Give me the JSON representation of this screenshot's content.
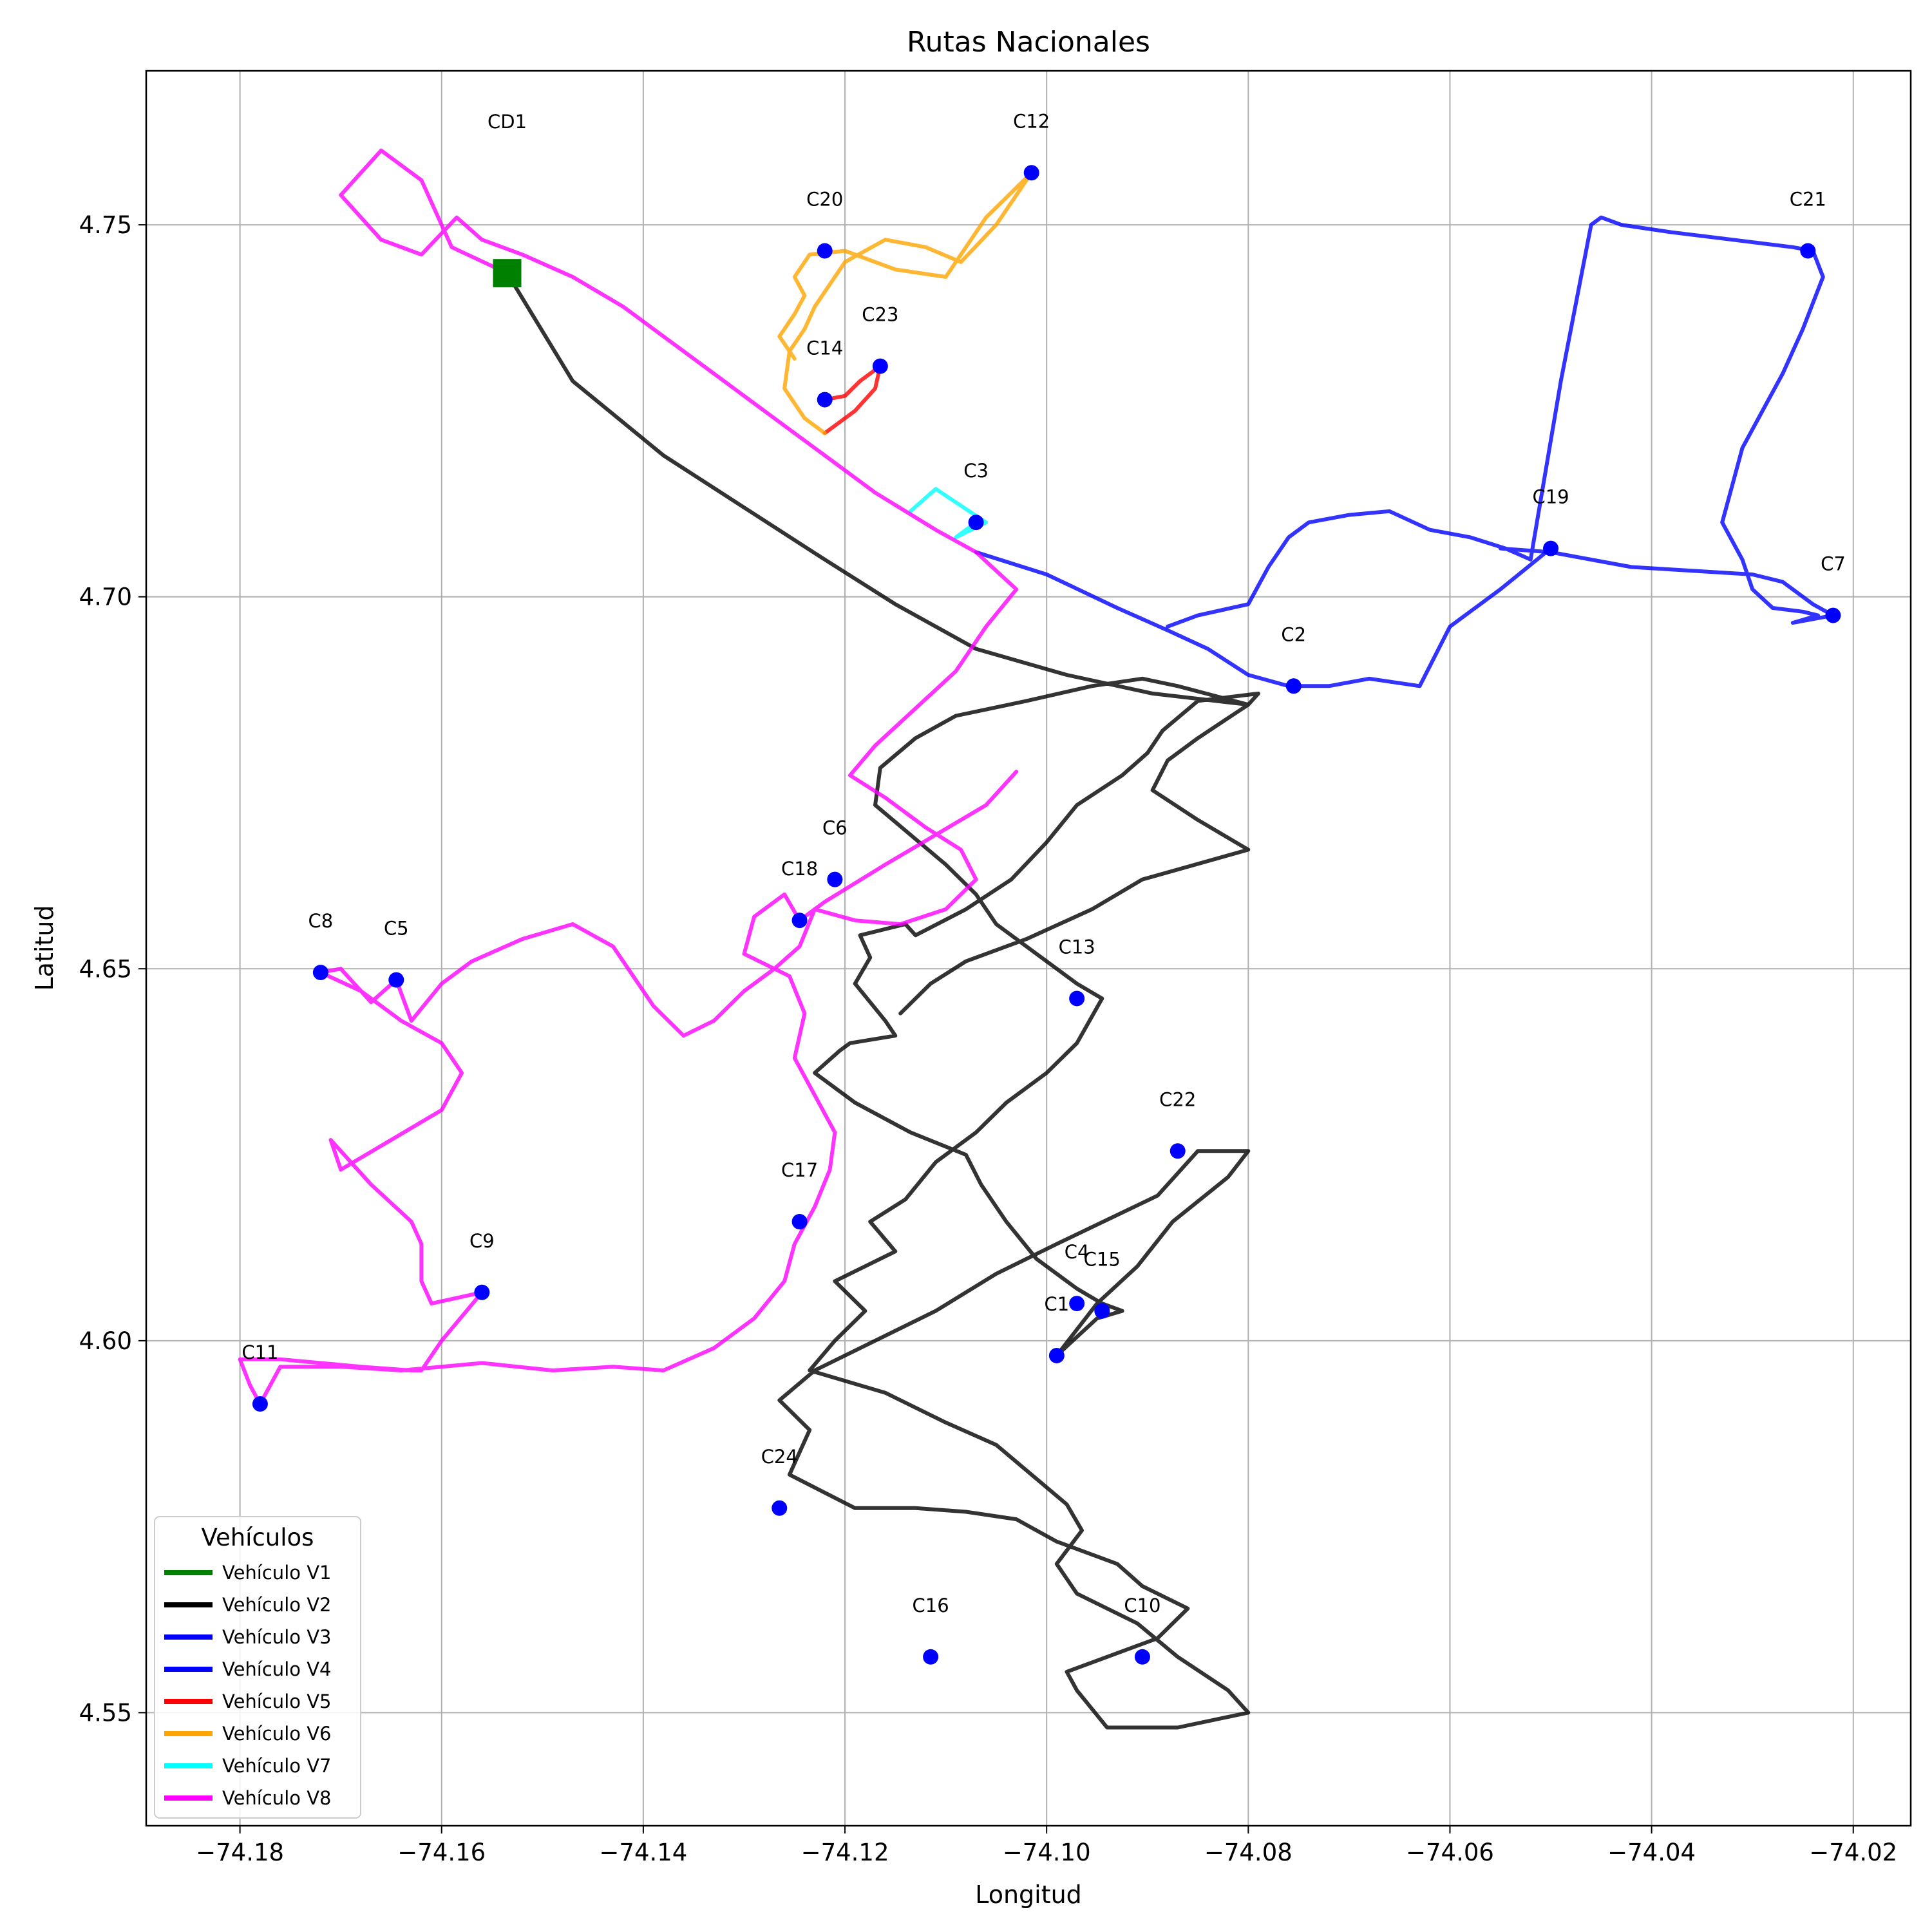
{
  "chart_data": {
    "type": "line",
    "title": "Rutas Nacionales",
    "xlabel": "Longitud",
    "ylabel": "Latitud",
    "xlim": [
      -74.1893,
      -74.0143
    ],
    "ylim": [
      4.5348,
      4.7707
    ],
    "xticks": [
      -74.18,
      -74.16,
      -74.14,
      -74.12,
      -74.1,
      -74.08,
      -74.06,
      -74.04,
      -74.02
    ],
    "xtick_labels": [
      "−74.18",
      "−74.16",
      "−74.14",
      "−74.12",
      "−74.10",
      "−74.08",
      "−74.06",
      "−74.04",
      "−74.02"
    ],
    "yticks": [
      4.55,
      4.6,
      4.65,
      4.7,
      4.75
    ],
    "ytick_labels": [
      "4.55",
      "4.60",
      "4.65",
      "4.70",
      "4.75"
    ],
    "grid": true,
    "depot": {
      "label": "CD1",
      "x": -74.1535,
      "y": 4.7435,
      "color": "#008000"
    },
    "customers": [
      {
        "label": "C1",
        "x": -74.099,
        "y": 4.598
      },
      {
        "label": "C2",
        "x": -74.0755,
        "y": 4.688
      },
      {
        "label": "C3",
        "x": -74.107,
        "y": 4.71
      },
      {
        "label": "C4",
        "x": -74.097,
        "y": 4.605
      },
      {
        "label": "C5",
        "x": -74.1645,
        "y": 4.6485
      },
      {
        "label": "C6",
        "x": -74.121,
        "y": 4.662
      },
      {
        "label": "C7",
        "x": -74.022,
        "y": 4.6975
      },
      {
        "label": "C8",
        "x": -74.172,
        "y": 4.6495
      },
      {
        "label": "C9",
        "x": -74.156,
        "y": 4.6065
      },
      {
        "label": "C10",
        "x": -74.0905,
        "y": 4.5575
      },
      {
        "label": "C11",
        "x": -74.178,
        "y": 4.5915
      },
      {
        "label": "C12",
        "x": -74.1015,
        "y": 4.757
      },
      {
        "label": "C13",
        "x": -74.097,
        "y": 4.646
      },
      {
        "label": "C14",
        "x": -74.122,
        "y": 4.7265
      },
      {
        "label": "C15",
        "x": -74.0945,
        "y": 4.604
      },
      {
        "label": "C16",
        "x": -74.1115,
        "y": 4.5575
      },
      {
        "label": "C17",
        "x": -74.1245,
        "y": 4.616
      },
      {
        "label": "C18",
        "x": -74.1245,
        "y": 4.6565
      },
      {
        "label": "C19",
        "x": -74.05,
        "y": 4.7065
      },
      {
        "label": "C20",
        "x": -74.122,
        "y": 4.7465
      },
      {
        "label": "C21",
        "x": -74.0245,
        "y": 4.7465
      },
      {
        "label": "C22",
        "x": -74.087,
        "y": 4.6255
      },
      {
        "label": "C23",
        "x": -74.1165,
        "y": 4.731
      },
      {
        "label": "C24",
        "x": -74.1265,
        "y": 4.5775
      }
    ],
    "series": [
      {
        "name": "Vehículo V1",
        "color": "#008000",
        "x": [],
        "y": []
      },
      {
        "name": "Vehículo V2",
        "color": "#000000",
        "x": [
          -74.1535,
          -74.147,
          -74.138,
          -74.13,
          -74.122,
          -74.115,
          -74.107,
          -74.098,
          -74.0895,
          -74.08,
          -74.079,
          -74.085,
          -74.0885,
          -74.09,
          -74.0925,
          -74.097,
          -74.1,
          -74.1035,
          -74.108,
          -74.113,
          -74.114,
          -74.1185,
          -74.1175,
          -74.119,
          -74.116,
          -74.115,
          -74.1195,
          -74.1205,
          -74.123,
          -74.119,
          -74.1135,
          -74.108,
          -74.1065,
          -74.104,
          -74.101,
          -74.097,
          -74.0945,
          -74.0925,
          -74.095,
          -74.099,
          -74.095,
          -74.091,
          -74.0875,
          -74.082,
          -74.08,
          -74.085,
          -74.089,
          -74.099,
          -74.105,
          -74.111,
          -74.117,
          -74.123,
          -74.1265,
          -74.1235,
          -74.1255,
          -74.119,
          -74.113,
          -74.108,
          -74.103,
          -74.099,
          -74.093,
          -74.0905,
          -74.086,
          -74.089,
          -74.094,
          -74.098,
          -74.097,
          -74.094,
          -74.087,
          -74.08,
          -74.082,
          -74.087,
          -74.091,
          -74.097,
          -74.099,
          -74.0965,
          -74.098,
          -74.1015,
          -74.105,
          -74.11,
          -74.116,
          -74.1235,
          -74.121,
          -74.118,
          -74.121,
          -74.115,
          -74.1175,
          -74.114,
          -74.111,
          -74.107,
          -74.104,
          -74.1,
          -74.097,
          -74.0945,
          -74.097,
          -74.101,
          -74.105,
          -74.107,
          -74.11,
          -74.1135,
          -74.117,
          -74.1165,
          -74.113,
          -74.109,
          -74.102,
          -74.0955,
          -74.0905,
          -74.087,
          -74.08,
          -74.085,
          -74.088,
          -74.0895,
          -74.085,
          -74.08,
          -74.0905,
          -74.0955,
          -74.102,
          -74.108,
          -74.1115,
          -74.1145
        ],
        "y": [
          4.7435,
          4.729,
          4.719,
          4.712,
          4.705,
          4.699,
          4.693,
          4.6895,
          4.687,
          4.6855,
          4.687,
          4.686,
          4.682,
          4.679,
          4.676,
          4.672,
          4.667,
          4.662,
          4.658,
          4.6545,
          4.656,
          4.6545,
          4.6515,
          4.648,
          4.643,
          4.641,
          4.64,
          4.639,
          4.636,
          4.632,
          4.628,
          4.625,
          4.621,
          4.616,
          4.611,
          4.607,
          4.605,
          4.604,
          4.603,
          4.598,
          4.605,
          4.61,
          4.616,
          4.622,
          4.6255,
          4.6255,
          4.6195,
          4.613,
          4.609,
          4.604,
          4.6,
          4.596,
          4.592,
          4.588,
          4.582,
          4.5775,
          4.5775,
          4.577,
          4.576,
          4.573,
          4.57,
          4.567,
          4.564,
          4.56,
          4.5575,
          4.5555,
          4.553,
          4.548,
          4.548,
          4.55,
          4.553,
          4.5575,
          4.562,
          4.566,
          4.57,
          4.5745,
          4.578,
          4.582,
          4.586,
          4.589,
          4.593,
          4.596,
          4.6,
          4.604,
          4.608,
          4.612,
          4.616,
          4.619,
          4.624,
          4.628,
          4.632,
          4.636,
          4.64,
          4.646,
          4.648,
          4.652,
          4.656,
          4.66,
          4.664,
          4.668,
          4.672,
          4.677,
          4.681,
          4.684,
          4.686,
          4.688,
          4.689,
          4.688,
          4.6855,
          4.681,
          4.678,
          4.674,
          4.67,
          4.666,
          4.662,
          4.658,
          4.654,
          4.651,
          4.648,
          4.644
        ]
      },
      {
        "name": "Vehículo V3",
        "color": "#0000ff",
        "x": [
          -74.107,
          -74.1,
          -74.093,
          -74.088,
          -74.084,
          -74.08,
          -74.076,
          -74.072,
          -74.068,
          -74.063,
          -74.06,
          -74.055,
          -74.05
        ],
        "y": [
          4.706,
          4.703,
          4.6985,
          4.6955,
          4.693,
          4.6895,
          4.688,
          4.688,
          4.689,
          4.688,
          4.696,
          4.701,
          4.7065
        ]
      },
      {
        "name": "Vehículo V4",
        "color": "#0000ff",
        "x": [
          -74.088,
          -74.085,
          -74.08,
          -74.078,
          -74.076,
          -74.074,
          -74.07,
          -74.066,
          -74.062,
          -74.058,
          -74.0545,
          -74.052,
          -74.049,
          -74.046,
          -74.045,
          -74.043,
          -74.038,
          -74.032,
          -74.026,
          -74.024,
          -74.023,
          -74.025,
          -74.027,
          -74.029,
          -74.031,
          -74.032,
          -74.033,
          -74.031,
          -74.03,
          -74.028,
          -74.025,
          -74.0235,
          -74.026,
          -74.022,
          -74.024,
          -74.027,
          -74.03,
          -74.036,
          -74.042,
          -74.05,
          -74.055
        ],
        "y": [
          4.696,
          4.6975,
          4.699,
          4.704,
          4.708,
          4.71,
          4.711,
          4.7115,
          4.709,
          4.708,
          4.7065,
          4.705,
          4.729,
          4.75,
          4.751,
          4.75,
          4.749,
          4.748,
          4.747,
          4.7465,
          4.743,
          4.736,
          4.73,
          4.725,
          4.72,
          4.715,
          4.71,
          4.705,
          4.701,
          4.6985,
          4.698,
          4.6975,
          4.6965,
          4.6975,
          4.699,
          4.702,
          4.703,
          4.7035,
          4.704,
          4.706,
          4.7065
        ]
      },
      {
        "name": "Vehículo V5",
        "color": "#ff0000",
        "x": [
          -74.122,
          -74.12,
          -74.1185,
          -74.1165,
          -74.117,
          -74.119,
          -74.121,
          -74.122
        ],
        "y": [
          4.7265,
          4.727,
          4.729,
          4.731,
          4.728,
          4.725,
          4.723,
          4.722
        ]
      },
      {
        "name": "Vehículo V6",
        "color": "#ffa500",
        "x": [
          -74.122,
          -74.124,
          -74.126,
          -74.1255,
          -74.124,
          -74.123,
          -74.1215,
          -74.12,
          -74.116,
          -74.112,
          -74.1085,
          -74.105,
          -74.1015,
          -74.106,
          -74.11,
          -74.115,
          -74.12,
          -74.1235,
          -74.125,
          -74.124,
          -74.125,
          -74.1265,
          -74.125
        ],
        "y": [
          4.722,
          4.724,
          4.728,
          4.733,
          4.736,
          4.739,
          4.742,
          4.745,
          4.748,
          4.747,
          4.745,
          4.75,
          4.757,
          4.751,
          4.743,
          4.744,
          4.7465,
          4.746,
          4.743,
          4.7405,
          4.738,
          4.735,
          4.732
        ]
      },
      {
        "name": "Vehículo V7",
        "color": "#00ffff",
        "x": [
          -74.1135,
          -74.111,
          -74.106,
          -74.109,
          -74.107
        ],
        "y": [
          4.7115,
          4.7145,
          4.71,
          4.708,
          4.71
        ]
      },
      {
        "name": "Vehículo V8",
        "color": "#ff00ff",
        "x": [
          -74.1535,
          -74.159,
          -74.162,
          -74.166,
          -74.17,
          -74.166,
          -74.162,
          -74.1585,
          -74.156,
          -74.152,
          -74.147,
          -74.142,
          -74.137,
          -74.132,
          -74.127,
          -74.122,
          -74.117,
          -74.111,
          -74.107,
          -74.103,
          -74.106,
          -74.109,
          -74.113,
          -74.117,
          -74.1195,
          -74.116,
          -74.112,
          -74.1085,
          -74.107,
          -74.11,
          -74.1145,
          -74.119,
          -74.123,
          -74.1245,
          -74.127,
          -74.13,
          -74.133,
          -74.136,
          -74.139,
          -74.143,
          -74.147,
          -74.152,
          -74.157,
          -74.16,
          -74.163,
          -74.1645,
          -74.167,
          -74.17,
          -74.172,
          -74.168,
          -74.164,
          -74.16,
          -74.158,
          -74.16,
          -74.165,
          -74.17,
          -74.171,
          -74.167,
          -74.163,
          -74.162,
          -74.162,
          -74.161,
          -74.156,
          -74.16,
          -74.162,
          -74.163,
          -74.168,
          -74.172,
          -74.176,
          -74.18,
          -74.179,
          -74.178,
          -74.176,
          -74.17,
          -74.164,
          -74.16,
          -74.156,
          -74.149,
          -74.143,
          -74.138,
          -74.133,
          -74.129,
          -74.126,
          -74.125,
          -74.123,
          -74.1215,
          -74.121,
          -74.123,
          -74.125,
          -74.124,
          -74.1255,
          -74.13,
          -74.129,
          -74.126,
          -74.1245,
          -74.122,
          -74.116,
          -74.111,
          -74.106,
          -74.103
        ],
        "y": [
          4.7435,
          4.747,
          4.756,
          4.76,
          4.754,
          4.748,
          4.746,
          4.751,
          4.748,
          4.746,
          4.743,
          4.739,
          4.734,
          4.729,
          4.724,
          4.719,
          4.714,
          4.709,
          4.706,
          4.701,
          4.696,
          4.69,
          4.685,
          4.68,
          4.676,
          4.673,
          4.669,
          4.666,
          4.662,
          4.658,
          4.656,
          4.6565,
          4.658,
          4.653,
          4.65,
          4.647,
          4.643,
          4.641,
          4.645,
          4.653,
          4.656,
          4.654,
          4.651,
          4.648,
          4.643,
          4.6485,
          4.6455,
          4.65,
          4.6495,
          4.647,
          4.643,
          4.64,
          4.636,
          4.631,
          4.627,
          4.623,
          4.627,
          4.621,
          4.616,
          4.613,
          4.608,
          4.605,
          4.6065,
          4.6,
          4.596,
          4.596,
          4.5965,
          4.597,
          4.5975,
          4.5975,
          4.594,
          4.5915,
          4.5965,
          4.5965,
          4.596,
          4.5965,
          4.597,
          4.596,
          4.5965,
          4.596,
          4.599,
          4.603,
          4.608,
          4.613,
          4.618,
          4.623,
          4.628,
          4.633,
          4.638,
          4.644,
          4.649,
          4.652,
          4.657,
          4.66,
          4.6565,
          4.659,
          4.664,
          4.668,
          4.672,
          4.6765
        ]
      }
    ],
    "legend": {
      "title": "Vehículos",
      "placement": "lower-left"
    }
  }
}
